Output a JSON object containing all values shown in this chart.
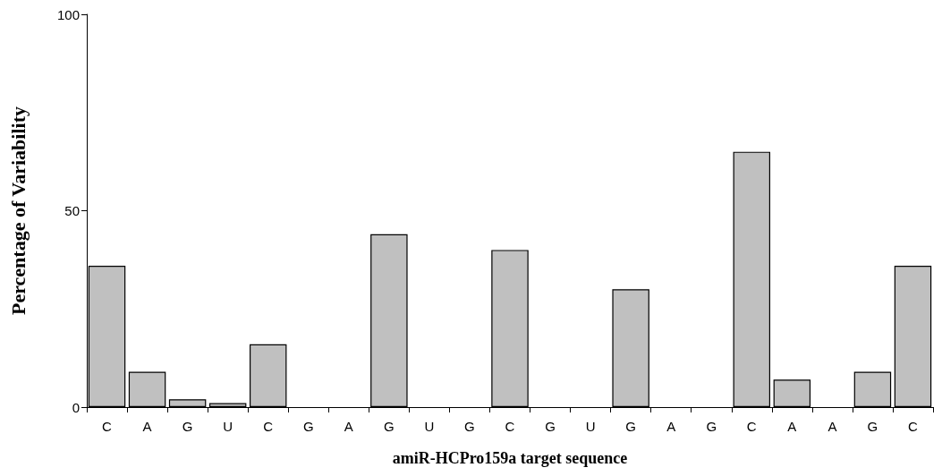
{
  "chart_data": {
    "type": "bar",
    "xlabel": "amiR-HCPro159a target sequence",
    "ylabel": "Percentage of Variability",
    "categories": [
      "C",
      "A",
      "G",
      "U",
      "C",
      "G",
      "A",
      "G",
      "U",
      "G",
      "C",
      "G",
      "U",
      "G",
      "A",
      "G",
      "C",
      "A",
      "A",
      "G",
      "C"
    ],
    "values": [
      36,
      9,
      2,
      1,
      16,
      0,
      0,
      44,
      0,
      0,
      40,
      0,
      0,
      30,
      0,
      0,
      65,
      7,
      0,
      9,
      36
    ],
    "color": "#c0c0c0",
    "ylim": [
      0,
      100
    ],
    "yticks": [
      0,
      50,
      100
    ]
  }
}
